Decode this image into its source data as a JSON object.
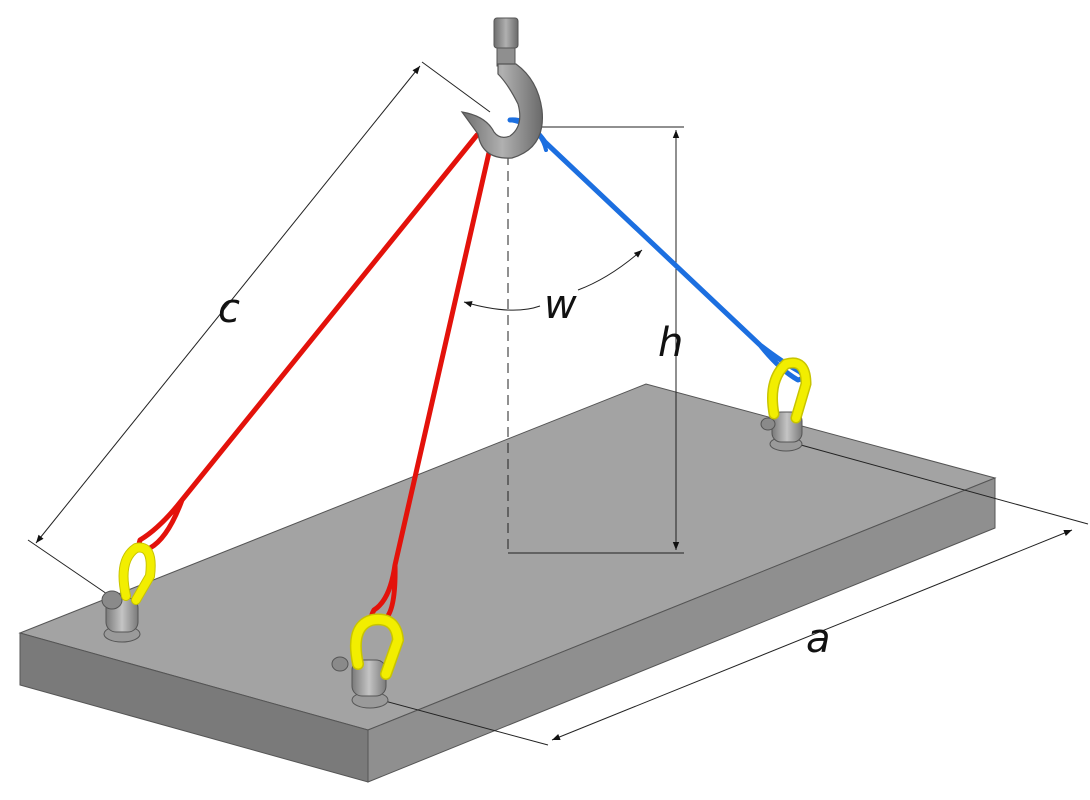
{
  "labels": {
    "sling_length": "c",
    "sling_angle": "w",
    "hook_height": "h",
    "pickup_distance": "a"
  },
  "colors": {
    "plate_top": "#a3a3a3",
    "plate_front": "#7a7a7a",
    "plate_side": "#8f8f8f",
    "sling_red": "#e3120b",
    "sling_blue": "#1c6fe0",
    "shackle_yellow": "#f2ee00",
    "hook_gray": "#8a8a8a",
    "dimension_line": "#222222"
  },
  "icons": {
    "hook": "crane-hook-icon",
    "shackle": "shackle-icon",
    "lifting_eye": "lifting-eye-icon"
  }
}
